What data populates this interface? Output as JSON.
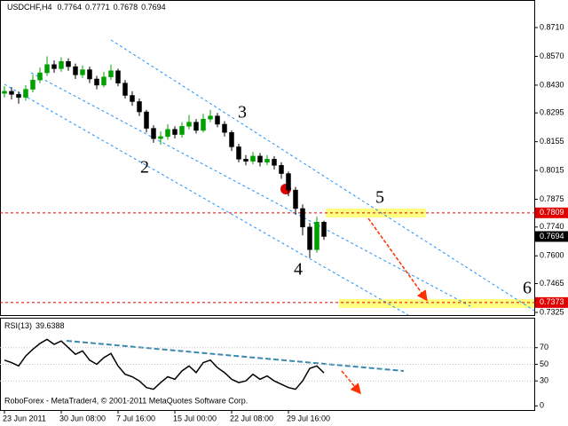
{
  "chart_data": [
    {
      "type": "candlestick",
      "title": "USDCHF,H4",
      "footer": "RoboForex - MetaTrader4, © 2001-2011 MetaQuotes Software Corp.",
      "categories": [
        "23 Jun 2011",
        null,
        null,
        null,
        null,
        null,
        null,
        null,
        "30 Jun 08:00",
        null,
        null,
        null,
        null,
        null,
        null,
        null,
        "7 Jul 16:00",
        null,
        null,
        null,
        null,
        null,
        null,
        null,
        "15 Jul 00:00",
        null,
        null,
        null,
        null,
        null,
        null,
        null,
        "22 Jul 08:00",
        null,
        null,
        null,
        null,
        null,
        null,
        null,
        "29 Jul 16:00",
        null,
        null,
        null,
        null,
        null
      ],
      "open": [
        0.839,
        0.84,
        0.8385,
        0.837,
        0.841,
        0.8455,
        0.849,
        0.853,
        0.851,
        0.8545,
        0.852,
        0.848,
        0.8505,
        0.846,
        0.843,
        0.847,
        0.85,
        0.844,
        0.838,
        0.835,
        0.83,
        0.822,
        0.817,
        0.818,
        0.8215,
        0.819,
        0.823,
        0.825,
        0.821,
        0.8265,
        0.828,
        0.824,
        0.82,
        0.813,
        0.807,
        0.806,
        0.8085,
        0.8055,
        0.807,
        0.804,
        0.8,
        0.792,
        0.783,
        0.774,
        0.763,
        0.7764
      ],
      "high": [
        0.8425,
        0.842,
        0.84,
        0.843,
        0.848,
        0.8515,
        0.857,
        0.855,
        0.8565,
        0.856,
        0.8535,
        0.8525,
        0.852,
        0.8475,
        0.8495,
        0.853,
        0.851,
        0.8455,
        0.84,
        0.8365,
        0.831,
        0.8235,
        0.8205,
        0.824,
        0.823,
        0.825,
        0.8285,
        0.8265,
        0.829,
        0.831,
        0.8295,
        0.8255,
        0.821,
        0.8145,
        0.809,
        0.8105,
        0.81,
        0.809,
        0.8085,
        0.8055,
        0.801,
        0.7935,
        0.785,
        0.776,
        0.779,
        0.7771
      ],
      "low": [
        0.837,
        0.836,
        0.834,
        0.8355,
        0.8395,
        0.844,
        0.8475,
        0.849,
        0.8495,
        0.85,
        0.846,
        0.8465,
        0.844,
        0.841,
        0.842,
        0.8455,
        0.8425,
        0.8365,
        0.833,
        0.828,
        0.82,
        0.815,
        0.814,
        0.8165,
        0.817,
        0.8175,
        0.8215,
        0.8195,
        0.82,
        0.825,
        0.8225,
        0.818,
        0.811,
        0.8055,
        0.804,
        0.8045,
        0.8035,
        0.804,
        0.802,
        0.7975,
        0.789,
        0.78,
        0.77,
        0.759,
        0.7615,
        0.7678
      ],
      "close": [
        0.84,
        0.8385,
        0.837,
        0.841,
        0.8455,
        0.849,
        0.853,
        0.851,
        0.8545,
        0.852,
        0.848,
        0.8505,
        0.846,
        0.843,
        0.847,
        0.85,
        0.844,
        0.838,
        0.835,
        0.83,
        0.822,
        0.817,
        0.818,
        0.8215,
        0.819,
        0.823,
        0.825,
        0.821,
        0.8265,
        0.828,
        0.824,
        0.82,
        0.813,
        0.807,
        0.806,
        0.8085,
        0.8055,
        0.807,
        0.804,
        0.8,
        0.792,
        0.783,
        0.774,
        0.763,
        0.7764,
        0.7694
      ],
      "up_color": "#00a000",
      "down_color": "#000000",
      "ylim": [
        0.7312,
        0.8844
      ],
      "yticks": [
        {
          "value": 0.871,
          "label": "0.8710"
        },
        {
          "value": 0.857,
          "label": "0.8570"
        },
        {
          "value": 0.843,
          "label": "0.8430"
        },
        0.8295,
        0.8155,
        0.8015,
        0.7875,
        {
          "value": 0.774,
          "label": "0.7740"
        },
        {
          "value": 0.76,
          "label": "0.7600"
        },
        0.7465,
        0.7325
      ],
      "hlines": [
        0.7809,
        0.7373
      ],
      "hline_color": "#e00000",
      "annotations": [
        "2",
        "3",
        "4",
        "5",
        "6"
      ]
    },
    {
      "type": "line",
      "title": "RSI(13)",
      "color": "#000000",
      "values": [
        55,
        52,
        48,
        60,
        68,
        75,
        80,
        74,
        78,
        70,
        62,
        66,
        55,
        50,
        58,
        63,
        48,
        38,
        35,
        30,
        22,
        20,
        28,
        35,
        32,
        42,
        48,
        40,
        52,
        55,
        46,
        40,
        32,
        28,
        30,
        38,
        32,
        36,
        30,
        26,
        22,
        20,
        30,
        45,
        48,
        39.6388
      ],
      "ylim": [
        -5,
        106
      ],
      "yticks": [
        70,
        50,
        30,
        0
      ]
    }
  ]
}
